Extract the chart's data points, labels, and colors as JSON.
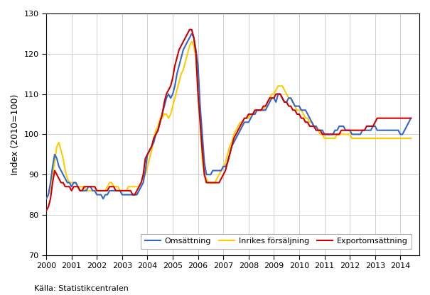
{
  "title": "",
  "ylabel": "Index (2010=100)",
  "source": "Källa: Statistikcentralen",
  "ylim": [
    70,
    130
  ],
  "yticks": [
    70,
    80,
    90,
    100,
    110,
    120,
    130
  ],
  "colors": {
    "omsattning": "#3366cc",
    "inrikes": "#ffcc00",
    "export": "#cc0000"
  },
  "legend_labels": [
    "Omsättning",
    "Inrikes försäljning",
    "Exportomsättning"
  ],
  "omsattning": [
    84,
    85,
    88,
    92,
    95,
    94,
    92,
    91,
    90,
    89,
    88,
    88,
    87,
    88,
    88,
    87,
    86,
    86,
    86,
    86,
    87,
    87,
    86,
    86,
    85,
    85,
    85,
    84,
    85,
    85,
    86,
    86,
    86,
    86,
    86,
    86,
    85,
    85,
    85,
    85,
    85,
    85,
    85,
    85,
    86,
    87,
    88,
    91,
    95,
    96,
    97,
    98,
    100,
    101,
    103,
    105,
    107,
    109,
    110,
    109,
    110,
    112,
    115,
    117,
    119,
    121,
    122,
    123,
    124,
    125,
    124,
    121,
    117,
    107,
    100,
    93,
    90,
    90,
    90,
    91,
    91,
    91,
    91,
    91,
    92,
    92,
    93,
    95,
    97,
    98,
    99,
    100,
    101,
    102,
    103,
    103,
    103,
    104,
    105,
    105,
    106,
    106,
    106,
    106,
    106,
    107,
    108,
    109,
    109,
    108,
    110,
    110,
    109,
    108,
    108,
    109,
    109,
    108,
    107,
    107,
    107,
    106,
    106,
    106,
    105,
    104,
    103,
    102,
    102,
    101,
    101,
    101,
    100,
    100,
    100,
    100,
    100,
    101,
    101,
    102,
    102,
    102,
    101,
    101,
    101,
    100,
    100,
    100,
    100,
    100,
    101,
    101,
    101,
    101,
    101,
    102,
    102,
    101,
    101,
    101,
    101,
    101,
    101,
    101,
    101,
    101,
    101,
    101,
    100,
    100,
    101,
    102,
    103,
    104
  ],
  "inrikes": [
    84,
    85,
    87,
    90,
    93,
    97,
    98,
    96,
    94,
    91,
    89,
    88,
    88,
    88,
    88,
    87,
    87,
    87,
    87,
    86,
    86,
    86,
    86,
    86,
    86,
    86,
    86,
    86,
    86,
    87,
    88,
    88,
    87,
    87,
    87,
    86,
    86,
    86,
    86,
    87,
    87,
    87,
    87,
    87,
    87,
    88,
    89,
    90,
    92,
    94,
    96,
    99,
    101,
    102,
    104,
    104,
    105,
    105,
    104,
    105,
    107,
    109,
    111,
    113,
    115,
    116,
    118,
    120,
    122,
    123,
    122,
    119,
    110,
    103,
    94,
    90,
    89,
    88,
    88,
    88,
    88,
    89,
    90,
    91,
    92,
    93,
    95,
    97,
    98,
    100,
    101,
    102,
    103,
    103,
    104,
    104,
    104,
    105,
    105,
    106,
    106,
    106,
    106,
    106,
    107,
    108,
    109,
    110,
    110,
    111,
    112,
    112,
    112,
    111,
    110,
    109,
    109,
    108,
    107,
    106,
    106,
    106,
    105,
    104,
    104,
    103,
    103,
    102,
    102,
    101,
    100,
    100,
    99,
    99,
    99,
    99,
    99,
    99,
    100,
    100,
    100,
    100,
    100,
    100,
    100,
    99,
    99,
    99,
    99,
    99,
    99,
    99,
    99,
    99,
    99,
    99,
    99,
    99,
    99,
    99,
    99,
    99,
    99,
    99,
    99,
    99,
    99,
    99,
    99,
    99,
    99,
    99,
    99,
    99
  ],
  "export": [
    81,
    82,
    84,
    88,
    91,
    90,
    89,
    88,
    88,
    87,
    87,
    87,
    86,
    87,
    87,
    87,
    86,
    86,
    87,
    87,
    87,
    87,
    87,
    87,
    86,
    86,
    86,
    86,
    86,
    86,
    87,
    87,
    87,
    86,
    86,
    86,
    86,
    86,
    86,
    86,
    86,
    85,
    85,
    86,
    87,
    88,
    90,
    94,
    95,
    96,
    97,
    99,
    100,
    101,
    103,
    105,
    108,
    110,
    111,
    112,
    114,
    117,
    119,
    121,
    122,
    123,
    124,
    125,
    126,
    126,
    124,
    120,
    110,
    103,
    96,
    90,
    88,
    88,
    88,
    88,
    88,
    88,
    88,
    89,
    90,
    91,
    93,
    95,
    97,
    99,
    100,
    101,
    102,
    103,
    104,
    104,
    105,
    105,
    105,
    106,
    106,
    106,
    106,
    107,
    107,
    108,
    109,
    109,
    109,
    110,
    110,
    110,
    109,
    108,
    108,
    107,
    107,
    106,
    106,
    105,
    105,
    104,
    104,
    103,
    103,
    102,
    102,
    102,
    101,
    101,
    101,
    100,
    100,
    100,
    100,
    100,
    100,
    100,
    100,
    100,
    101,
    101,
    101,
    101,
    101,
    101,
    101,
    101,
    101,
    101,
    101,
    101,
    102,
    102,
    102,
    102,
    103,
    104,
    104,
    104,
    104,
    104,
    104,
    104,
    104,
    104,
    104,
    104,
    104,
    104,
    104,
    104,
    104,
    104
  ],
  "x_start": 2000.0,
  "x_step": 0.08333333,
  "xlim_end": 2014.75,
  "xtick_years": [
    2000,
    2001,
    2002,
    2003,
    2004,
    2005,
    2006,
    2007,
    2008,
    2009,
    2010,
    2011,
    2012,
    2013,
    2014
  ]
}
